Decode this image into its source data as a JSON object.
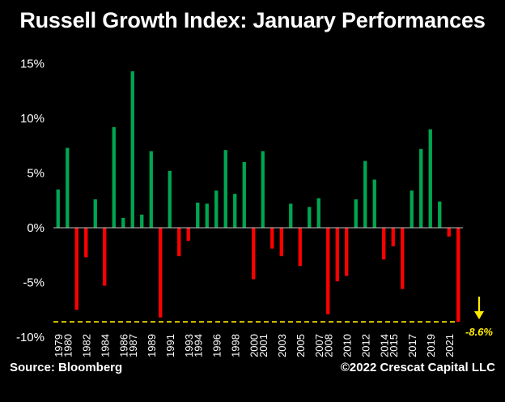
{
  "title": "Russell Growth Index: January Performances",
  "source": "Source: Bloomberg",
  "copyright": "©2022 Crescat Capital LLC",
  "colors": {
    "positive": "#00a651",
    "negative": "#ff0000",
    "annotation": "#ffeb00",
    "background": "#000000",
    "text": "#ffffff"
  },
  "chart_data": {
    "type": "bar",
    "title": "Russell Growth Index: January Performances",
    "xlabel": "",
    "ylabel": "",
    "ylim": [
      -10,
      15
    ],
    "yticks": [
      "15%",
      "10%",
      "5%",
      "0%",
      "-5%",
      "-10%"
    ],
    "grid": false,
    "categories": [
      "1979",
      "1980",
      "1981",
      "1982",
      "1983",
      "1984",
      "1985",
      "1986",
      "1987",
      "1988",
      "1989",
      "1990",
      "1991",
      "1992",
      "1993",
      "1994",
      "1995",
      "1996",
      "1997",
      "1998",
      "1999",
      "2000",
      "2001",
      "2002",
      "2003",
      "2004",
      "2005",
      "2006",
      "2007",
      "2008",
      "2009",
      "2010",
      "2011",
      "2012",
      "2013",
      "2014",
      "2015",
      "2016",
      "2017",
      "2018",
      "2019",
      "2020",
      "2021",
      "2022"
    ],
    "xtick_labels": [
      "1979",
      "1980",
      "1982",
      "1984",
      "1986",
      "1987",
      "1989",
      "1991",
      "1993",
      "1994",
      "1996",
      "1998",
      "2000",
      "2001",
      "2003",
      "2005",
      "2007",
      "2008",
      "2010",
      "2012",
      "2014",
      "2015",
      "2017",
      "2019",
      "2021"
    ],
    "values": [
      3.5,
      7.3,
      -7.5,
      -2.7,
      2.6,
      -5.3,
      9.2,
      0.9,
      14.3,
      1.2,
      7.0,
      -8.2,
      5.2,
      -2.6,
      -1.2,
      2.3,
      2.2,
      3.4,
      7.1,
      3.1,
      6.0,
      -4.7,
      7.0,
      -1.9,
      -2.6,
      2.2,
      -3.5,
      1.9,
      2.7,
      -7.9,
      -4.9,
      -4.4,
      2.6,
      6.1,
      4.4,
      -2.9,
      -1.7,
      -5.6,
      3.4,
      7.2,
      9.0,
      2.4,
      -0.8,
      -8.6
    ],
    "reference_line": {
      "value": -8.6,
      "label": "-8.6%"
    }
  }
}
